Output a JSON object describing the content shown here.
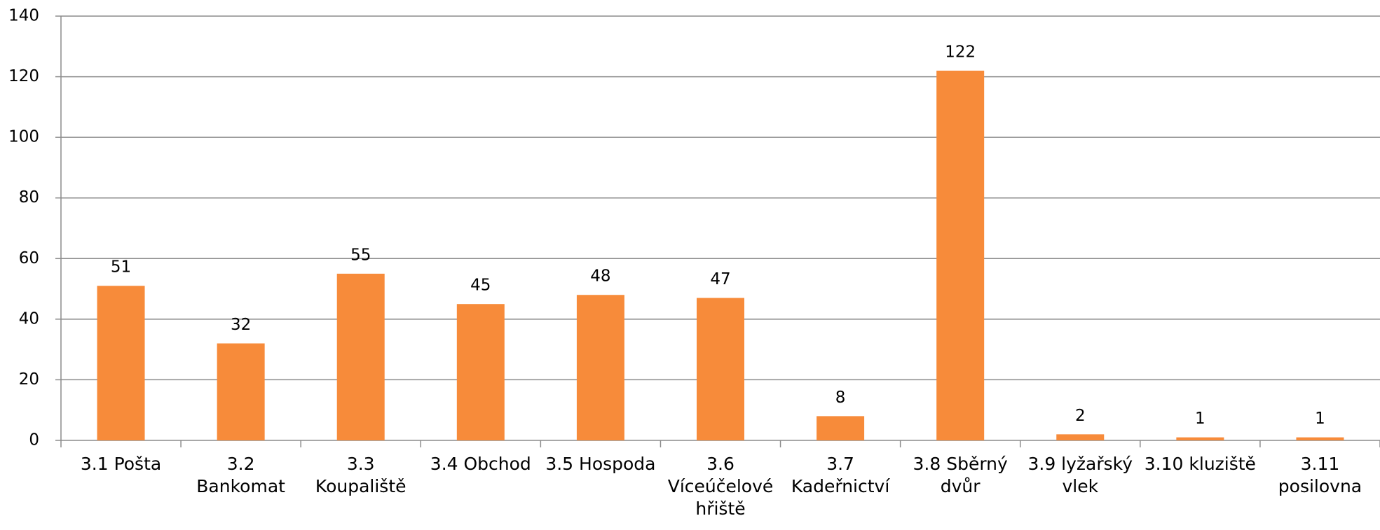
{
  "chart_data": {
    "type": "bar",
    "categories": [
      "3.1 Pošta",
      "3.2 Bankomat",
      "3.3 Koupaliště",
      "3.4 Obchod",
      "3.5 Hospoda",
      "3.6 Víceúčelové hřiště",
      "3.7 Kadeřnictví",
      "3.8 Sběrný dvůr",
      "3.9 lyžařský vlek",
      "3.10 kluziště",
      "3.11 posilovna"
    ],
    "values": [
      51,
      32,
      55,
      45,
      48,
      47,
      8,
      122,
      2,
      1,
      1
    ],
    "color": "#f78b3a",
    "ylim": [
      0,
      140
    ],
    "yticks": [
      0,
      20,
      40,
      60,
      80,
      100,
      120,
      140
    ],
    "grid": true
  }
}
